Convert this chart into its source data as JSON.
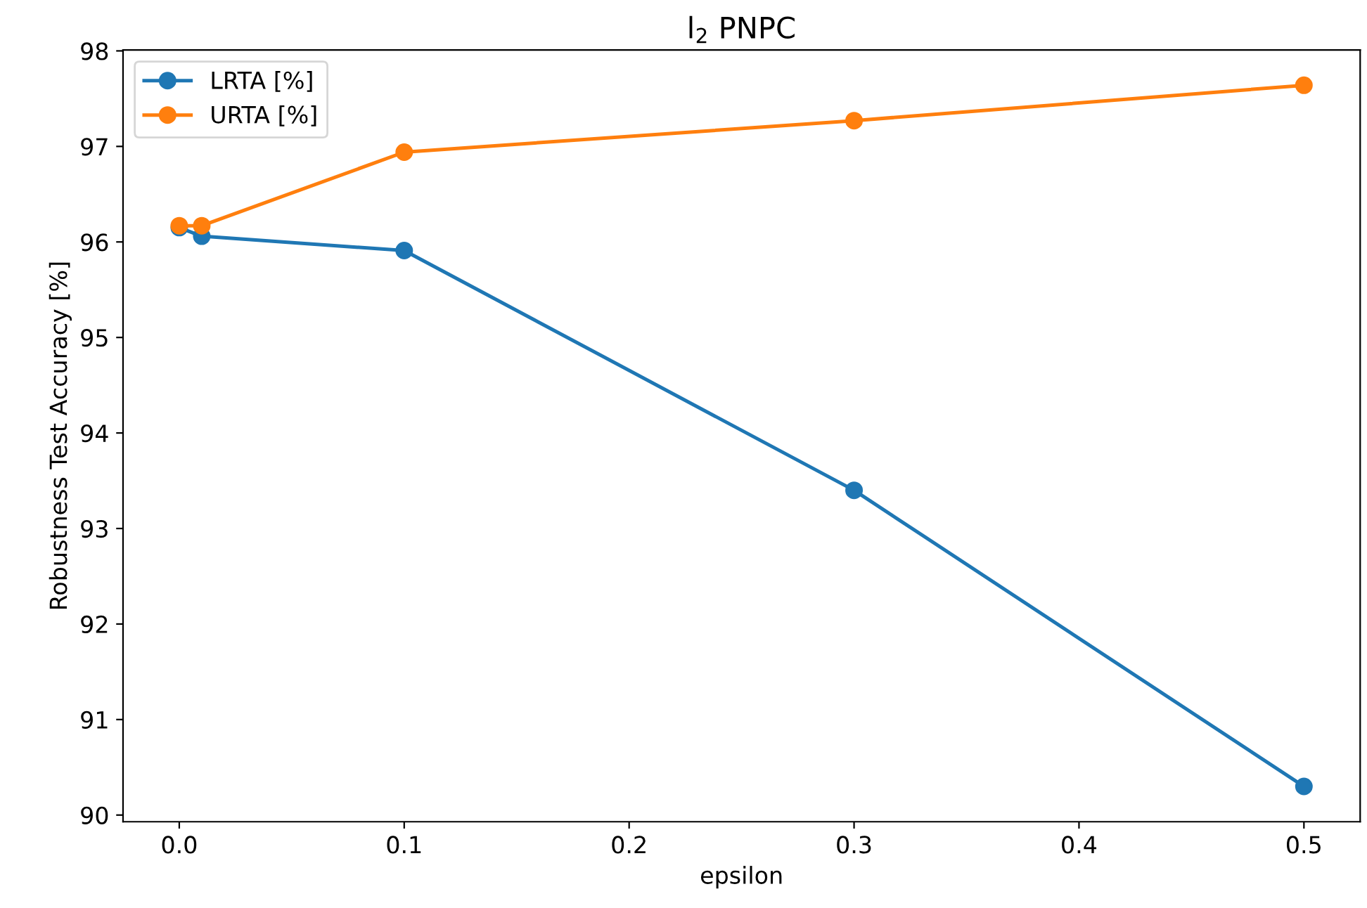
{
  "chart_data": {
    "type": "line",
    "title": "l$_{2}$ PNPC",
    "xlabel": "epsilon",
    "ylabel": "Robustness Test Accuracy [%]",
    "x": [
      0,
      0.01,
      0.1,
      0.3,
      0.5
    ],
    "series": [
      {
        "name": "LRTA [%]",
        "color": "#1f77b4",
        "values": [
          96.15,
          96.06,
          95.91,
          93.4,
          90.3
        ]
      },
      {
        "name": "URTA [%]",
        "color": "#ff7f0e",
        "values": [
          96.17,
          96.17,
          96.94,
          97.27,
          97.64
        ]
      }
    ],
    "xlim": [
      -0.025,
      0.525
    ],
    "xticks": [
      {
        "value": 0,
        "label": "0.0"
      },
      0.1,
      0.2,
      0.3,
      0.4,
      0.5
    ],
    "ylim": [
      89.93,
      98.01
    ],
    "yticks": [
      90,
      91,
      92,
      93,
      94,
      95,
      96,
      97,
      98
    ],
    "grid": false,
    "legend": "top left",
    "marker": "circle",
    "line_style": "solid"
  }
}
